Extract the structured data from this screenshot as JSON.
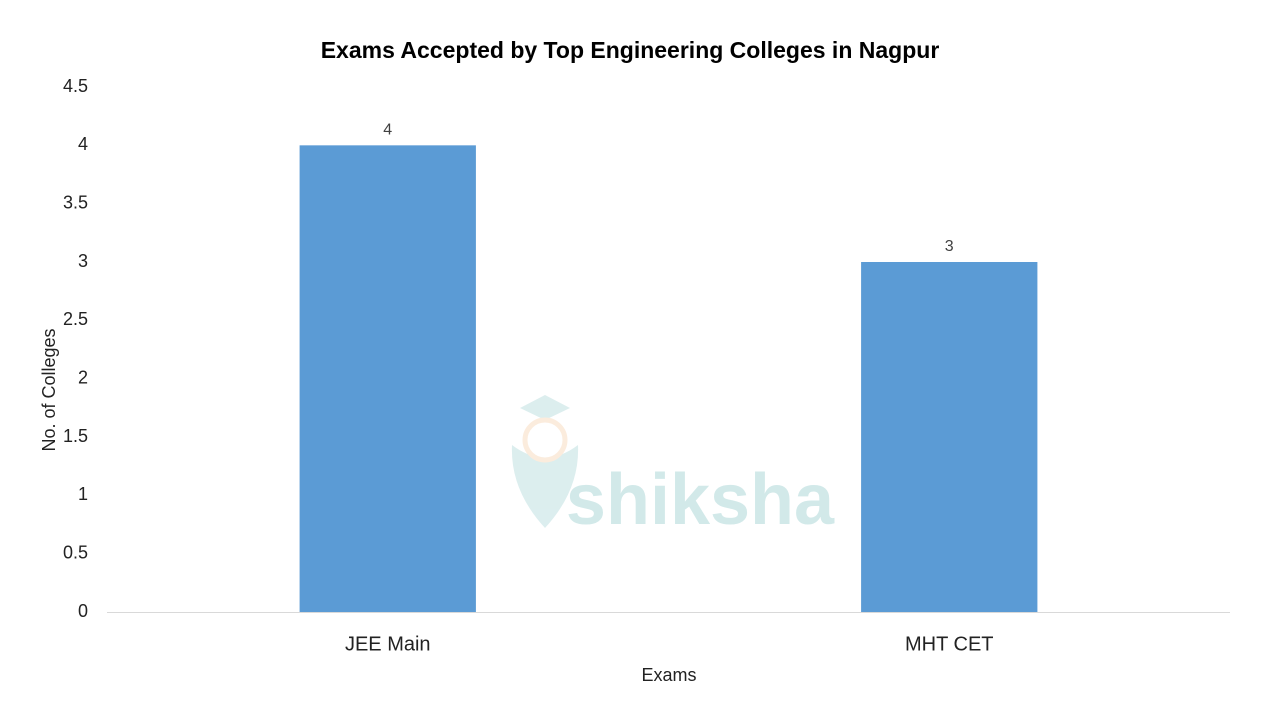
{
  "chart_data": {
    "type": "bar",
    "title": "Exams Accepted by Top Engineering Colleges in Nagpur",
    "x_label": "Exams",
    "y_label": "No. of Colleges",
    "categories": [
      "JEE Main",
      "MHT CET"
    ],
    "values": [
      4,
      3
    ],
    "color": "#5b9bd5",
    "ylim": [
      0,
      4.5
    ],
    "yticks": [
      0,
      0.5,
      1,
      1.5,
      2,
      2.5,
      3,
      3.5,
      4,
      4.5
    ],
    "grid": false,
    "watermark": "shiksha"
  }
}
